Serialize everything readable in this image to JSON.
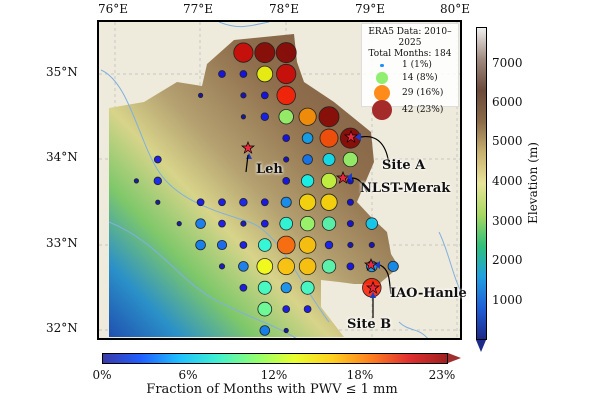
{
  "axes": {
    "lon_ticks": [
      "76°E",
      "77°E",
      "78°E",
      "79°E",
      "80°E"
    ],
    "lat_ticks": [
      "35°N",
      "34°N",
      "33°N",
      "32°N"
    ]
  },
  "legend": {
    "title_line1": "ERA5 Data: 2010–2025",
    "title_line2": "Total Months: 184",
    "entries": [
      {
        "label": "1 (1%)",
        "months": 1,
        "color": "#1e90ff"
      },
      {
        "label": "14 (8%)",
        "months": 14,
        "color": "#90ee70"
      },
      {
        "label": "29 (16%)",
        "months": 29,
        "color": "#ff8c1a"
      },
      {
        "label": "42 (23%)",
        "months": 42,
        "color": "#a52a2a"
      }
    ]
  },
  "elevation_colorbar": {
    "title": "Elevation (m)",
    "ticks": [
      "7000",
      "6000",
      "5000",
      "4000",
      "3000",
      "2000",
      "1000"
    ]
  },
  "fraction_colorbar": {
    "title": "Fraction of Months with PWV ≤ 1 mm",
    "ticks": [
      "0%",
      "6%",
      "12%",
      "18%",
      "23%"
    ],
    "max_percent": 23
  },
  "sites": [
    {
      "name": "Leh"
    },
    {
      "name": "Site A"
    },
    {
      "name": "NLST-Merak"
    },
    {
      "name": "IAO-Hanle"
    },
    {
      "name": "Site B"
    }
  ],
  "grid_points": [
    {
      "lon": 77.5,
      "lat": 35.25,
      "months": 39
    },
    {
      "lon": 77.75,
      "lat": 35.25,
      "months": 42
    },
    {
      "lon": 78.0,
      "lat": 35.25,
      "months": 42
    },
    {
      "lon": 77.25,
      "lat": 35.0,
      "months": 5
    },
    {
      "lon": 77.5,
      "lat": 35.0,
      "months": 5
    },
    {
      "lon": 77.75,
      "lat": 35.0,
      "months": 26
    },
    {
      "lon": 78.0,
      "lat": 35.0,
      "months": 39
    },
    {
      "lon": 77.0,
      "lat": 34.75,
      "months": 2
    },
    {
      "lon": 77.5,
      "lat": 34.75,
      "months": 3
    },
    {
      "lon": 77.75,
      "lat": 34.75,
      "months": 5
    },
    {
      "lon": 78.0,
      "lat": 34.75,
      "months": 36
    },
    {
      "lon": 77.5,
      "lat": 34.5,
      "months": 2
    },
    {
      "lon": 77.75,
      "lat": 34.5,
      "months": 6
    },
    {
      "lon": 78.0,
      "lat": 34.5,
      "months": 22
    },
    {
      "lon": 78.25,
      "lat": 34.5,
      "months": 31
    },
    {
      "lon": 78.5,
      "lat": 34.5,
      "months": 42
    },
    {
      "lon": 78.0,
      "lat": 34.25,
      "months": 5
    },
    {
      "lon": 78.25,
      "lat": 34.25,
      "months": 12
    },
    {
      "lon": 78.5,
      "lat": 34.25,
      "months": 34
    },
    {
      "lon": 78.75,
      "lat": 34.25,
      "months": 42
    },
    {
      "lon": 76.5,
      "lat": 34.0,
      "months": 5
    },
    {
      "lon": 78.0,
      "lat": 34.0,
      "months": 3
    },
    {
      "lon": 78.25,
      "lat": 34.0,
      "months": 10
    },
    {
      "lon": 78.5,
      "lat": 34.0,
      "months": 15
    },
    {
      "lon": 78.75,
      "lat": 34.0,
      "months": 22
    },
    {
      "lon": 76.25,
      "lat": 33.75,
      "months": 2
    },
    {
      "lon": 76.5,
      "lat": 33.75,
      "months": 6
    },
    {
      "lon": 78.0,
      "lat": 33.75,
      "months": 5
    },
    {
      "lon": 78.25,
      "lat": 33.75,
      "months": 16
    },
    {
      "lon": 78.5,
      "lat": 33.75,
      "months": 24
    },
    {
      "lon": 78.75,
      "lat": 33.75,
      "months": 4
    },
    {
      "lon": 76.5,
      "lat": 33.5,
      "months": 2
    },
    {
      "lon": 77.0,
      "lat": 33.5,
      "months": 5
    },
    {
      "lon": 77.25,
      "lat": 33.5,
      "months": 5
    },
    {
      "lon": 77.5,
      "lat": 33.5,
      "months": 6
    },
    {
      "lon": 77.75,
      "lat": 33.5,
      "months": 5
    },
    {
      "lon": 78.0,
      "lat": 33.5,
      "months": 11
    },
    {
      "lon": 78.25,
      "lat": 33.5,
      "months": 28
    },
    {
      "lon": 78.5,
      "lat": 33.5,
      "months": 28
    },
    {
      "lon": 78.75,
      "lat": 33.5,
      "months": 4
    },
    {
      "lon": 76.75,
      "lat": 33.25,
      "months": 2
    },
    {
      "lon": 77.0,
      "lat": 33.25,
      "months": 10
    },
    {
      "lon": 77.25,
      "lat": 33.25,
      "months": 5
    },
    {
      "lon": 77.5,
      "lat": 33.25,
      "months": 3
    },
    {
      "lon": 77.75,
      "lat": 33.25,
      "months": 5
    },
    {
      "lon": 78.0,
      "lat": 33.25,
      "months": 17
    },
    {
      "lon": 78.25,
      "lat": 33.25,
      "months": 22
    },
    {
      "lon": 78.5,
      "lat": 33.25,
      "months": 19
    },
    {
      "lon": 78.75,
      "lat": 33.25,
      "months": 4
    },
    {
      "lon": 79.0,
      "lat": 33.25,
      "months": 14
    },
    {
      "lon": 77.0,
      "lat": 33.0,
      "months": 10
    },
    {
      "lon": 77.25,
      "lat": 33.0,
      "months": 9
    },
    {
      "lon": 77.5,
      "lat": 33.0,
      "months": 5
    },
    {
      "lon": 77.75,
      "lat": 33.0,
      "months": 17
    },
    {
      "lon": 78.0,
      "lat": 33.0,
      "months": 33
    },
    {
      "lon": 78.25,
      "lat": 33.0,
      "months": 29
    },
    {
      "lon": 78.5,
      "lat": 33.0,
      "months": 6
    },
    {
      "lon": 78.75,
      "lat": 33.0,
      "months": 3
    },
    {
      "lon": 79.0,
      "lat": 33.0,
      "months": 3
    },
    {
      "lon": 77.25,
      "lat": 32.75,
      "months": 3
    },
    {
      "lon": 77.5,
      "lat": 32.75,
      "months": 10
    },
    {
      "lon": 77.75,
      "lat": 32.75,
      "months": 26
    },
    {
      "lon": 78.0,
      "lat": 32.75,
      "months": 29
    },
    {
      "lon": 78.25,
      "lat": 32.75,
      "months": 29
    },
    {
      "lon": 78.5,
      "lat": 32.75,
      "months": 19
    },
    {
      "lon": 78.75,
      "lat": 32.75,
      "months": 5
    },
    {
      "lon": 79.0,
      "lat": 32.75,
      "months": 12
    },
    {
      "lon": 79.25,
      "lat": 32.75,
      "months": 11
    },
    {
      "lon": 77.5,
      "lat": 32.5,
      "months": 5
    },
    {
      "lon": 77.75,
      "lat": 32.5,
      "months": 18
    },
    {
      "lon": 78.0,
      "lat": 32.5,
      "months": 11
    },
    {
      "lon": 78.25,
      "lat": 32.5,
      "months": 18
    },
    {
      "lon": 79.0,
      "lat": 32.5,
      "months": 36
    },
    {
      "lon": 77.75,
      "lat": 32.25,
      "months": 20
    },
    {
      "lon": 78.0,
      "lat": 32.25,
      "months": 5
    },
    {
      "lon": 78.25,
      "lat": 32.25,
      "months": 5
    },
    {
      "lon": 77.75,
      "lat": 32.0,
      "months": 10
    },
    {
      "lon": 78.0,
      "lat": 32.0,
      "months": 2
    }
  ]
}
